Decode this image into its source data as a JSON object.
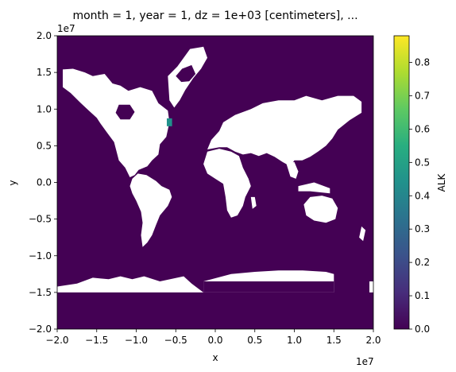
{
  "chart_data": {
    "type": "heatmap",
    "title": "month = 1, year = 1, dz = 1e+03 [centimeters], ...",
    "xlabel": "x",
    "ylabel": "y",
    "x_offset_label": "1e7",
    "y_offset_label": "1e7",
    "xlim": [
      -2.0,
      2.0
    ],
    "ylim": [
      -2.0,
      2.0
    ],
    "x_ticks": [
      -2.0,
      -1.5,
      -1.0,
      -0.5,
      0.0,
      0.5,
      1.0,
      1.5,
      2.0
    ],
    "x_tick_labels": [
      "−2.0",
      "−1.5",
      "−1.0",
      "−0.5",
      "0.0",
      "0.5",
      "1.0",
      "1.5",
      "2.0"
    ],
    "y_ticks": [
      -2.0,
      -1.5,
      -1.0,
      -0.5,
      0.0,
      0.5,
      1.0,
      1.5,
      2.0
    ],
    "y_tick_labels": [
      "−2.0",
      "−1.5",
      "−1.0",
      "−0.5",
      "0.0",
      "0.5",
      "1.0",
      "1.5",
      "2.0"
    ],
    "colorbar": {
      "label": "ALK",
      "range": [
        0.0,
        0.88
      ],
      "ticks": [
        0.0,
        0.1,
        0.2,
        0.3,
        0.4,
        0.5,
        0.6,
        0.7,
        0.8
      ],
      "tick_labels": [
        "0.0",
        "0.1",
        "0.2",
        "0.3",
        "0.4",
        "0.5",
        "0.6",
        "0.7",
        "0.8"
      ],
      "colormap": "viridis"
    },
    "background_value": 0.0,
    "background_color": "#440154",
    "missing_color": "#ffffff",
    "land_regions_missing": [
      {
        "name": "north-america",
        "points": [
          [
            -1.93,
            1.54
          ],
          [
            -1.8,
            1.55
          ],
          [
            -1.65,
            1.5
          ],
          [
            -1.55,
            1.45
          ],
          [
            -1.4,
            1.48
          ],
          [
            -1.3,
            1.35
          ],
          [
            -1.2,
            1.32
          ],
          [
            -1.1,
            1.25
          ],
          [
            -0.95,
            1.3
          ],
          [
            -0.8,
            1.25
          ],
          [
            -0.72,
            1.08
          ],
          [
            -0.6,
            0.98
          ],
          [
            -0.58,
            0.82
          ],
          [
            -0.62,
            0.62
          ],
          [
            -0.7,
            0.52
          ],
          [
            -0.72,
            0.38
          ],
          [
            -0.8,
            0.3
          ],
          [
            -0.86,
            0.22
          ],
          [
            -0.97,
            0.17
          ],
          [
            -1.02,
            0.1
          ],
          [
            -1.08,
            0.07
          ],
          [
            -1.14,
            0.2
          ],
          [
            -1.22,
            0.3
          ],
          [
            -1.28,
            0.55
          ],
          [
            -1.37,
            0.68
          ],
          [
            -1.45,
            0.8
          ],
          [
            -1.5,
            0.88
          ],
          [
            -1.6,
            0.98
          ],
          [
            -1.7,
            1.08
          ],
          [
            -1.83,
            1.22
          ],
          [
            -1.93,
            1.3
          ]
        ]
      },
      {
        "name": "hudson-bay-interior",
        "points": [
          [
            -1.22,
            1.06
          ],
          [
            -1.08,
            1.06
          ],
          [
            -1.02,
            0.96
          ],
          [
            -1.08,
            0.86
          ],
          [
            -1.2,
            0.86
          ],
          [
            -1.26,
            0.95
          ]
        ],
        "value": 0.0
      },
      {
        "name": "greenland",
        "points": [
          [
            -0.6,
            1.45
          ],
          [
            -0.48,
            1.58
          ],
          [
            -0.32,
            1.82
          ],
          [
            -0.15,
            1.85
          ],
          [
            -0.1,
            1.7
          ],
          [
            -0.18,
            1.55
          ],
          [
            -0.28,
            1.42
          ],
          [
            -0.38,
            1.26
          ],
          [
            -0.45,
            1.12
          ],
          [
            -0.52,
            1.02
          ],
          [
            -0.58,
            1.12
          ]
        ]
      },
      {
        "name": "greenland-lake",
        "points": [
          [
            -0.5,
            1.45
          ],
          [
            -0.42,
            1.55
          ],
          [
            -0.3,
            1.6
          ],
          [
            -0.25,
            1.48
          ],
          [
            -0.33,
            1.38
          ],
          [
            -0.43,
            1.37
          ]
        ],
        "value": 0.0
      },
      {
        "name": "south-america",
        "points": [
          [
            -0.98,
            0.12
          ],
          [
            -0.87,
            0.1
          ],
          [
            -0.75,
            0.02
          ],
          [
            -0.68,
            -0.05
          ],
          [
            -0.58,
            -0.1
          ],
          [
            -0.55,
            -0.2
          ],
          [
            -0.6,
            -0.32
          ],
          [
            -0.7,
            -0.45
          ],
          [
            -0.75,
            -0.58
          ],
          [
            -0.8,
            -0.72
          ],
          [
            -0.86,
            -0.82
          ],
          [
            -0.92,
            -0.88
          ],
          [
            -0.94,
            -0.72
          ],
          [
            -0.92,
            -0.55
          ],
          [
            -0.94,
            -0.4
          ],
          [
            -1.0,
            -0.25
          ],
          [
            -1.05,
            -0.15
          ],
          [
            -1.08,
            -0.05
          ],
          [
            -1.05,
            0.05
          ]
        ]
      },
      {
        "name": "eurasia",
        "points": [
          [
            -0.1,
            0.45
          ],
          [
            -0.05,
            0.58
          ],
          [
            0.05,
            0.7
          ],
          [
            0.1,
            0.82
          ],
          [
            0.25,
            0.92
          ],
          [
            0.45,
            1.0
          ],
          [
            0.6,
            1.08
          ],
          [
            0.8,
            1.12
          ],
          [
            1.0,
            1.12
          ],
          [
            1.15,
            1.18
          ],
          [
            1.35,
            1.12
          ],
          [
            1.55,
            1.18
          ],
          [
            1.75,
            1.18
          ],
          [
            1.85,
            1.1
          ],
          [
            1.85,
            0.95
          ],
          [
            1.7,
            0.85
          ],
          [
            1.55,
            0.72
          ],
          [
            1.48,
            0.6
          ],
          [
            1.4,
            0.5
          ],
          [
            1.3,
            0.42
          ],
          [
            1.2,
            0.35
          ],
          [
            1.1,
            0.3
          ],
          [
            1.0,
            0.3
          ],
          [
            0.95,
            0.22
          ],
          [
            0.85,
            0.28
          ],
          [
            0.75,
            0.35
          ],
          [
            0.65,
            0.4
          ],
          [
            0.55,
            0.36
          ],
          [
            0.45,
            0.4
          ],
          [
            0.35,
            0.38
          ],
          [
            0.25,
            0.42
          ],
          [
            0.15,
            0.48
          ],
          [
            0.05,
            0.48
          ]
        ]
      },
      {
        "name": "africa",
        "points": [
          [
            -0.1,
            0.42
          ],
          [
            0.05,
            0.46
          ],
          [
            0.2,
            0.42
          ],
          [
            0.3,
            0.36
          ],
          [
            0.35,
            0.2
          ],
          [
            0.42,
            0.05
          ],
          [
            0.45,
            -0.05
          ],
          [
            0.38,
            -0.2
          ],
          [
            0.35,
            -0.32
          ],
          [
            0.28,
            -0.45
          ],
          [
            0.2,
            -0.48
          ],
          [
            0.15,
            -0.38
          ],
          [
            0.13,
            -0.2
          ],
          [
            0.1,
            -0.02
          ],
          [
            0.0,
            0.05
          ],
          [
            -0.1,
            0.12
          ],
          [
            -0.15,
            0.25
          ]
        ]
      },
      {
        "name": "madagascar",
        "points": [
          [
            0.45,
            -0.2
          ],
          [
            0.5,
            -0.2
          ],
          [
            0.52,
            -0.32
          ],
          [
            0.47,
            -0.36
          ]
        ]
      },
      {
        "name": "southeast-asia",
        "points": [
          [
            0.9,
            0.25
          ],
          [
            1.0,
            0.28
          ],
          [
            1.05,
            0.15
          ],
          [
            1.02,
            0.05
          ],
          [
            0.95,
            0.08
          ]
        ]
      },
      {
        "name": "indonesia",
        "points": [
          [
            1.05,
            -0.05
          ],
          [
            1.25,
            0.0
          ],
          [
            1.45,
            -0.08
          ],
          [
            1.45,
            -0.15
          ],
          [
            1.2,
            -0.12
          ],
          [
            1.05,
            -0.12
          ]
        ]
      },
      {
        "name": "australia",
        "points": [
          [
            1.2,
            -0.2
          ],
          [
            1.35,
            -0.18
          ],
          [
            1.48,
            -0.22
          ],
          [
            1.55,
            -0.35
          ],
          [
            1.52,
            -0.5
          ],
          [
            1.4,
            -0.55
          ],
          [
            1.25,
            -0.52
          ],
          [
            1.15,
            -0.45
          ],
          [
            1.12,
            -0.3
          ]
        ]
      },
      {
        "name": "new-zealand",
        "points": [
          [
            1.85,
            -0.6
          ],
          [
            1.9,
            -0.65
          ],
          [
            1.87,
            -0.8
          ],
          [
            1.82,
            -0.75
          ]
        ]
      },
      {
        "name": "antarctica",
        "points": [
          [
            -2.0,
            -1.42
          ],
          [
            -1.75,
            -1.38
          ],
          [
            -1.55,
            -1.3
          ],
          [
            -1.35,
            -1.32
          ],
          [
            -1.2,
            -1.28
          ],
          [
            -1.05,
            -1.32
          ],
          [
            -0.9,
            -1.28
          ],
          [
            -0.7,
            -1.35
          ],
          [
            -0.4,
            -1.28
          ],
          [
            -0.3,
            -1.38
          ],
          [
            -0.15,
            -1.5
          ],
          [
            -0.15,
            -1.35
          ],
          [
            0.2,
            -1.25
          ],
          [
            0.5,
            -1.22
          ],
          [
            0.8,
            -1.2
          ],
          [
            1.1,
            -1.2
          ],
          [
            1.4,
            -1.22
          ],
          [
            1.5,
            -1.25
          ],
          [
            1.5,
            -1.4
          ],
          [
            1.5,
            -1.5
          ],
          [
            -2.0,
            -1.5
          ]
        ]
      },
      {
        "name": "antarctica-east-edge",
        "points": [
          [
            1.95,
            -1.35
          ],
          [
            2.0,
            -1.35
          ],
          [
            2.0,
            -1.5
          ],
          [
            1.95,
            -1.5
          ]
        ]
      },
      {
        "name": "antarctica-ice-block",
        "points": [
          [
            -0.15,
            -1.35
          ],
          [
            1.5,
            -1.35
          ],
          [
            1.5,
            -1.5
          ],
          [
            -0.15,
            -1.5
          ]
        ],
        "value": 0.0
      }
    ],
    "hotspot": {
      "x": -0.58,
      "y": 0.82,
      "value": 0.45
    }
  }
}
